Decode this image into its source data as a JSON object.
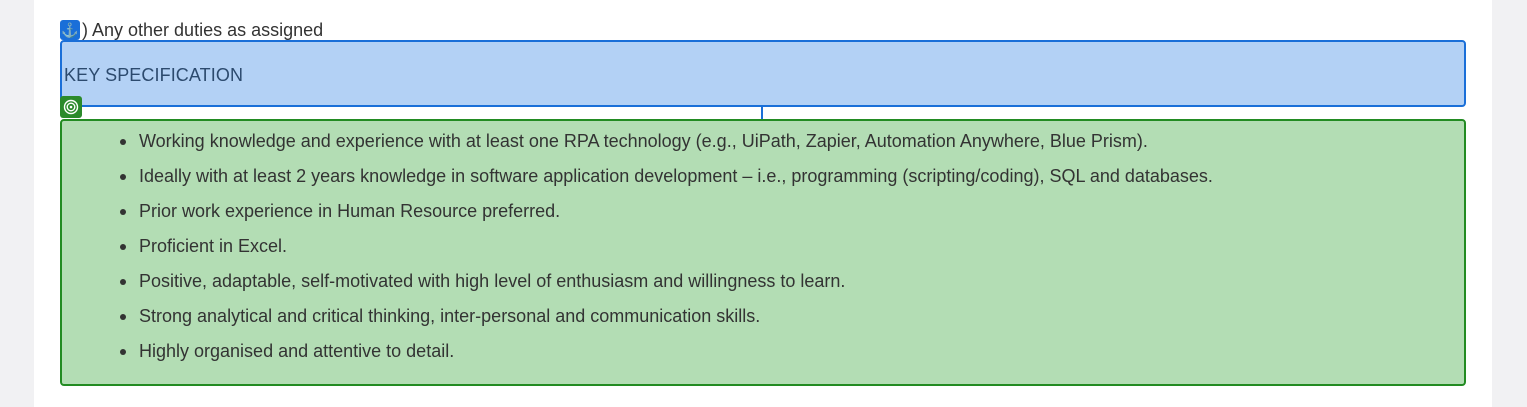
{
  "previous_item": {
    "text": ") Any other duties as assigned",
    "badge_icon": "anchor-icon"
  },
  "heading": {
    "text": "KEY SPECIFICATION",
    "badge_icon": "target-icon"
  },
  "specification_items": [
    "Working knowledge and experience with at least one RPA technology (e.g., UiPath, Zapier, Automation Anywhere, Blue Prism).",
    "Ideally with at least 2 years knowledge in software application development – i.e., programming (scripting/coding), SQL and databases.",
    "Prior work experience in Human Resource preferred.",
    "Proficient in Excel.",
    "Positive, adaptable, self-motivated with high level of enthusiasm and willingness to learn.",
    "Strong analytical and critical thinking, inter-personal and communication skills.",
    "Highly organised and attentive to detail."
  ],
  "colors": {
    "heading_fill": "#b3d1f5",
    "heading_border": "#1a6fd8",
    "spec_fill": "#b3ddb4",
    "spec_border": "#228b22"
  }
}
